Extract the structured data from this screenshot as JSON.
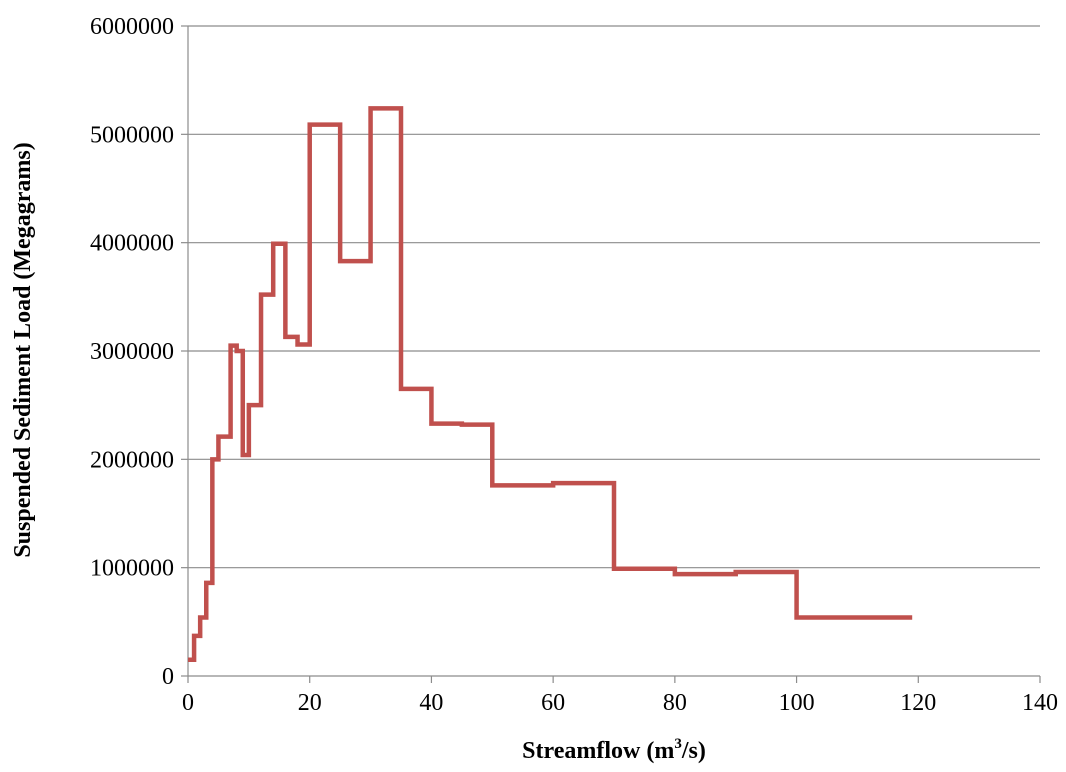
{
  "chart_data": {
    "type": "line",
    "step": true,
    "title": "",
    "xlabel_main": "Streamflow (m",
    "xlabel_sup": "3",
    "xlabel_tail": "/s)",
    "ylabel": "Suspended Sediment Load (Megagrams)",
    "xlim": [
      0,
      140
    ],
    "ylim": [
      0,
      6000000
    ],
    "xticks": [
      0,
      20,
      40,
      60,
      80,
      100,
      120,
      140
    ],
    "xtick_labels": [
      "0",
      "20",
      "40",
      "60",
      "80",
      "100",
      "120",
      "140"
    ],
    "yticks": [
      0,
      1000000,
      2000000,
      3000000,
      4000000,
      5000000,
      6000000
    ],
    "ytick_labels": [
      "0",
      "1000000",
      "2000000",
      "3000000",
      "4000000",
      "5000000",
      "6000000"
    ],
    "grid": "horizontal",
    "color": "#c0504d",
    "series": [
      {
        "x": [
          0,
          1,
          2,
          3,
          4,
          5,
          7,
          8,
          9,
          10,
          12,
          14,
          16,
          18,
          20,
          25,
          30,
          35,
          40,
          45,
          50,
          60,
          70,
          80,
          90,
          100,
          119
        ],
        "y": [
          150000,
          370000,
          540000,
          860000,
          2000000,
          2210000,
          3050000,
          3000000,
          2040000,
          2500000,
          3520000,
          3990000,
          3130000,
          3060000,
          5090000,
          3830000,
          5240000,
          2650000,
          2330000,
          2320000,
          1760000,
          1780000,
          990000,
          940000,
          960000,
          540000,
          540000
        ]
      }
    ]
  }
}
